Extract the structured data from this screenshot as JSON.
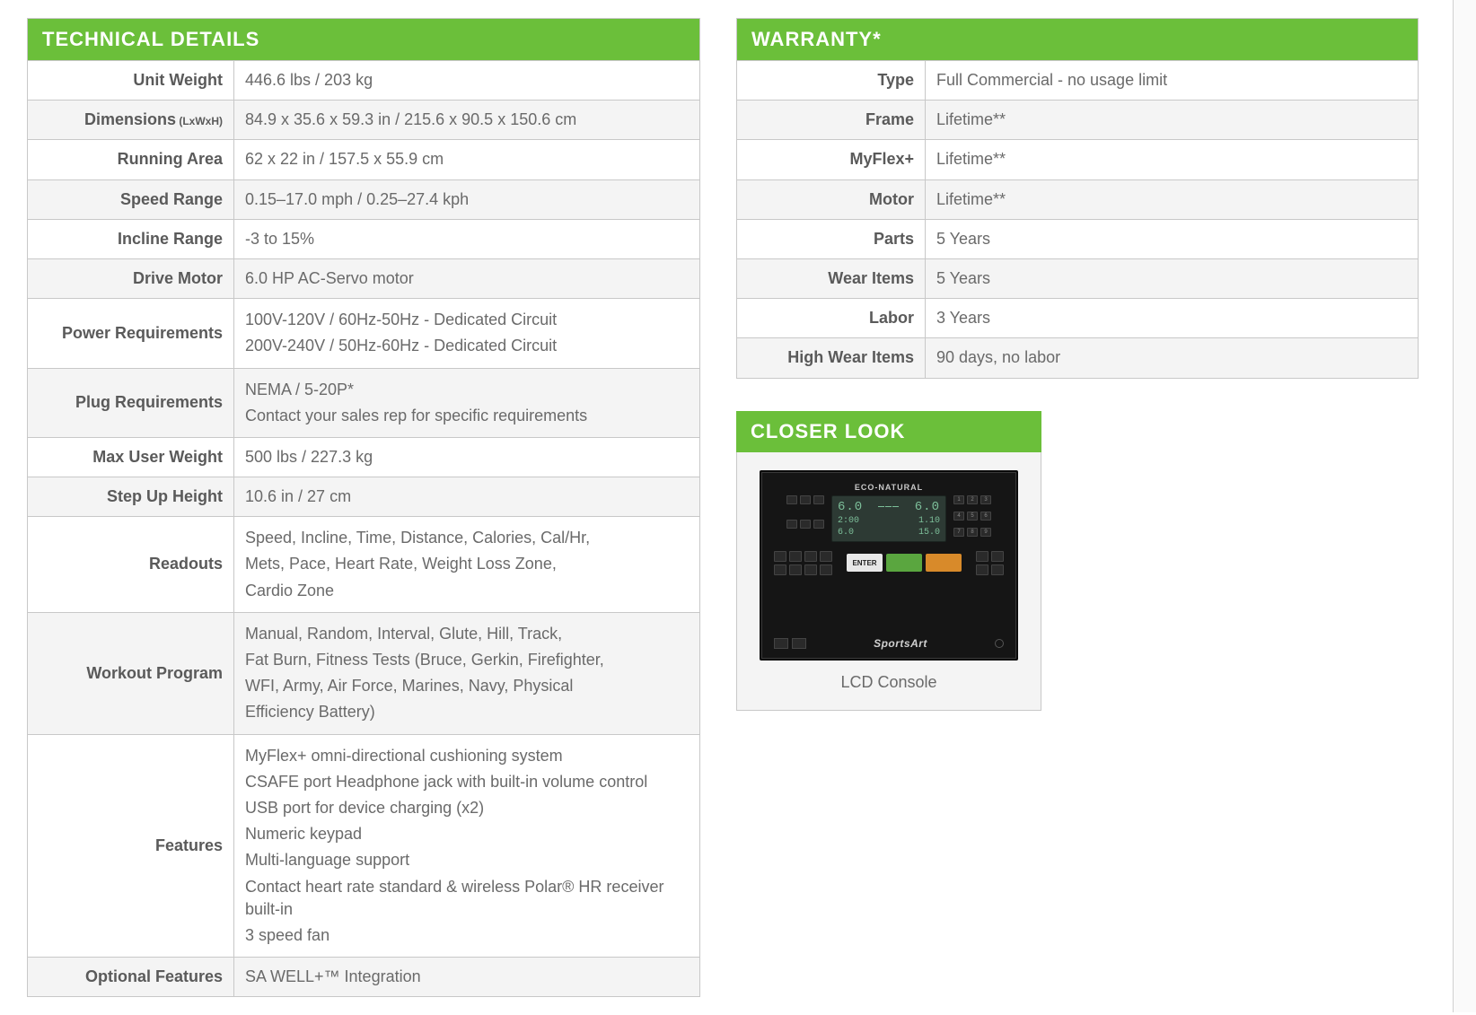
{
  "colors": {
    "accent": "#6bbf3a",
    "border": "#c8c8c8",
    "row_alt": "#f4f4f4",
    "text": "#5a5a5a",
    "text_muted": "#6a6a6a",
    "header_text": "#ffffff"
  },
  "technical": {
    "title": "TECHNICAL DETAILS",
    "rows": [
      {
        "label": "Unit Weight",
        "value": "446.6 lbs / 203 kg"
      },
      {
        "label": "Dimensions",
        "sublabel": "(LxWxH)",
        "value": "84.9 x 35.6 x 59.3 in / 215.6 x 90.5 x 150.6 cm"
      },
      {
        "label": "Running Area",
        "value": "62 x 22 in / 157.5 x 55.9 cm"
      },
      {
        "label": "Speed Range",
        "value": "0.15–17.0 mph / 0.25–27.4 kph"
      },
      {
        "label": "Incline Range",
        "value": "-3 to 15%"
      },
      {
        "label": "Drive Motor",
        "value": "6.0 HP AC-Servo motor"
      },
      {
        "label": "Power Requirements",
        "lines": [
          "100V-120V / 60Hz-50Hz - Dedicated Circuit",
          "200V-240V / 50Hz-60Hz - Dedicated Circuit"
        ]
      },
      {
        "label": "Plug Requirements",
        "lines": [
          "NEMA / 5-20P*",
          "Contact your sales rep for specific requirements"
        ]
      },
      {
        "label": "Max User Weight",
        "value": "500 lbs / 227.3 kg"
      },
      {
        "label": "Step Up Height",
        "value": "10.6 in / 27 cm"
      },
      {
        "label": "Readouts",
        "lines": [
          "Speed, Incline, Time, Distance, Calories, Cal/Hr,",
          "Mets, Pace, Heart Rate, Weight Loss Zone,",
          "Cardio Zone"
        ]
      },
      {
        "label": "Workout Program",
        "lines": [
          "Manual, Random, Interval, Glute, Hill, Track,",
          "Fat Burn, Fitness Tests (Bruce, Gerkin, Firefighter,",
          "WFI, Army, Air Force, Marines, Navy, Physical",
          "Efficiency Battery)"
        ]
      },
      {
        "label": "Features",
        "lines": [
          "MyFlex+ omni-directional cushioning system",
          "CSAFE port Headphone jack with built-in volume control",
          "USB port for device charging (x2)",
          "Numeric keypad",
          "Multi-language support",
          "Contact heart rate standard & wireless Polar® HR receiver built-in",
          "3 speed fan"
        ]
      },
      {
        "label": "Optional Features",
        "value": "SA WELL+™ Integration"
      }
    ]
  },
  "warranty": {
    "title": "WARRANTY*",
    "rows": [
      {
        "label": "Type",
        "value": "Full Commercial - no usage limit"
      },
      {
        "label": "Frame",
        "value": "Lifetime**"
      },
      {
        "label": "MyFlex+",
        "value": "Lifetime**"
      },
      {
        "label": "Motor",
        "value": "Lifetime**"
      },
      {
        "label": "Parts",
        "value": "5 Years"
      },
      {
        "label": "Wear Items",
        "value": "5 Years"
      },
      {
        "label": "Labor",
        "value": "3 Years"
      },
      {
        "label": "High Wear Items",
        "value": "90 days, no labor"
      }
    ]
  },
  "closer": {
    "title": "CLOSER LOOK",
    "brand_small": "ECO-NATURAL",
    "lcd": {
      "row1_left": "6.0",
      "row1_mid": "⎯⎯⎯",
      "row1_right": "6.0",
      "row2_left": "2:00",
      "row2_right": "1.10",
      "row3_left": "6.0",
      "row3_right": "15.0"
    },
    "enter_label": "ENTER",
    "logo": "SportsArt",
    "caption": "LCD Console"
  }
}
